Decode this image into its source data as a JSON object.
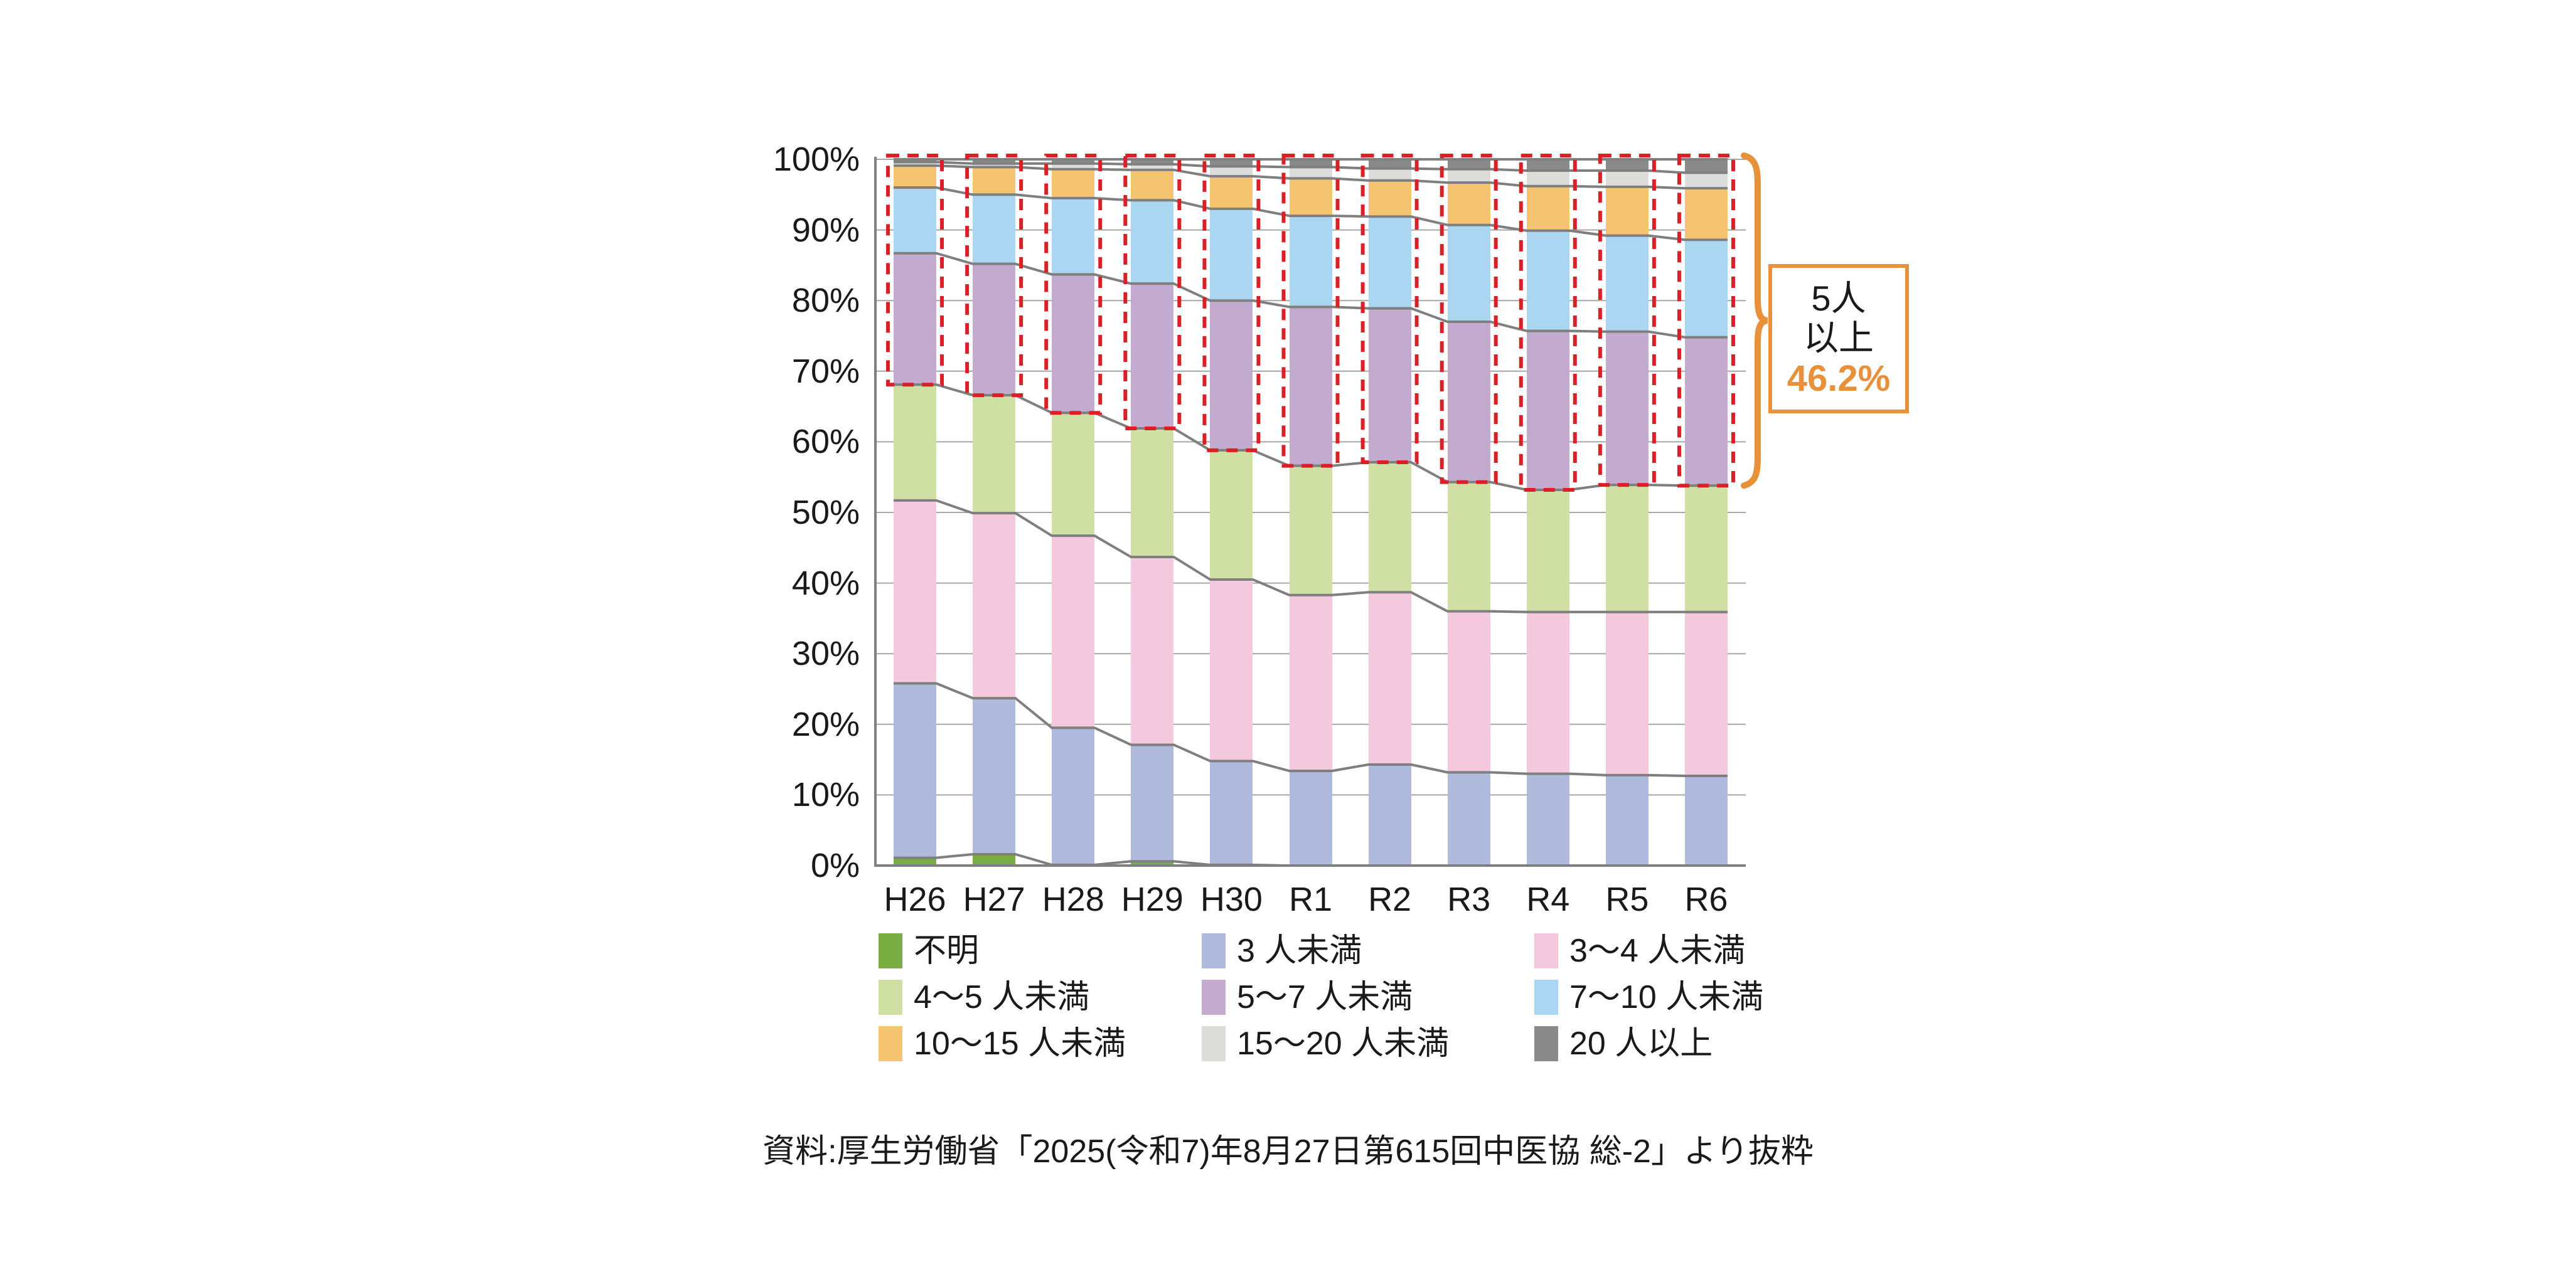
{
  "chart_data": {
    "type": "bar",
    "subtype": "stacked-100-percent-column",
    "categories": [
      "H26",
      "H27",
      "H28",
      "H29",
      "H30",
      "R1",
      "R2",
      "R3",
      "R4",
      "R5",
      "R6"
    ],
    "series": [
      {
        "name": "不明",
        "color": "#79AD41",
        "values": [
          1.1,
          1.6,
          0.1,
          0.6,
          0.1,
          0.0,
          0.0,
          0.0,
          0.0,
          0.0,
          0.0
        ]
      },
      {
        "name": "3 人未満",
        "color": "#AFBADD",
        "values": [
          24.7,
          22.1,
          19.4,
          16.5,
          14.7,
          13.4,
          14.3,
          13.2,
          13.0,
          12.8,
          12.7
        ]
      },
      {
        "name": "3〜4 人未満",
        "color": "#F4C8DD",
        "values": [
          25.9,
          26.2,
          27.2,
          26.6,
          25.7,
          24.9,
          24.4,
          22.8,
          22.9,
          23.1,
          23.2
        ]
      },
      {
        "name": "4〜5 人未満",
        "color": "#D0DFA3",
        "values": [
          16.4,
          16.7,
          17.4,
          18.2,
          18.3,
          18.3,
          18.4,
          18.3,
          17.3,
          18.0,
          17.9
        ]
      },
      {
        "name": "5〜7 人未満",
        "color": "#C3AACF",
        "values": [
          18.6,
          18.6,
          19.6,
          20.5,
          21.2,
          22.5,
          21.8,
          22.7,
          22.5,
          21.7,
          21.0
        ]
      },
      {
        "name": "7〜10 人未満",
        "color": "#AAD6F1",
        "values": [
          9.3,
          9.8,
          10.8,
          11.8,
          13.0,
          12.9,
          13.0,
          13.7,
          14.2,
          13.6,
          13.8
        ]
      },
      {
        "name": "10〜15 人未満",
        "color": "#F5C471",
        "values": [
          3.1,
          3.9,
          4.1,
          4.3,
          4.6,
          5.3,
          5.1,
          6.0,
          6.3,
          6.9,
          7.3
        ]
      },
      {
        "name": "15〜20 人未満",
        "color": "#DCDDDA",
        "values": [
          0.5,
          0.5,
          0.8,
          0.8,
          1.4,
          1.6,
          1.7,
          1.9,
          2.2,
          2.3,
          2.2
        ]
      },
      {
        "name": "20 人以上",
        "color": "#8A8A8A",
        "values": [
          0.4,
          0.6,
          0.6,
          0.7,
          1.0,
          1.1,
          1.3,
          1.4,
          1.6,
          1.6,
          1.9
        ]
      }
    ],
    "yticks": [
      "0%",
      "10%",
      "20%",
      "30%",
      "40%",
      "50%",
      "60%",
      "70%",
      "80%",
      "90%",
      "100%"
    ],
    "ylim": [
      0,
      100
    ],
    "grid": true,
    "legend_position": "bottom",
    "highlight": {
      "label": "5人以上",
      "scope": "series index 4-8 outlined with red dashed box on every bar",
      "latest_share": "46.2%"
    }
  },
  "annotation": {
    "line1": "5人",
    "line2": "以上",
    "value": "46.2%"
  },
  "source": "資料:厚生労働省「2025(令和7)年8月27日第615回中医協 総-2」より抜粋",
  "colors": {
    "red_dash": "#DC1E26",
    "boundary_line": "#7F7F7F",
    "gridline": "#A6A7A7",
    "axis": "#7F7F7F",
    "accent_orange": "#E8913B",
    "text": "#1A1A1A",
    "background": "#FFFFFF"
  }
}
